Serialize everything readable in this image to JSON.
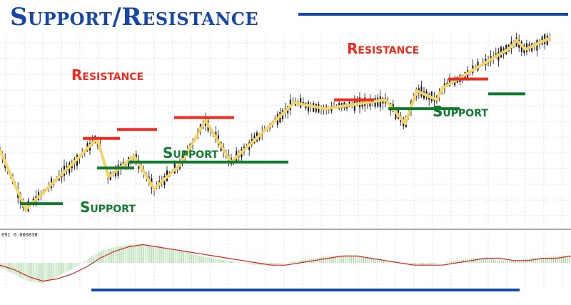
{
  "title": "Support/Resistance",
  "colors": {
    "title": "#1747a6",
    "support": "#117a2e",
    "resistance": "#f02a1e",
    "zigzag": "#f3d46c",
    "candles": "#111111",
    "grid": "#d9dde3",
    "macd_histogram": "#8fd18a",
    "macd_signal": "#d62020",
    "frame_line": "#1747a6"
  },
  "indicator": {
    "readout": "091 0.000838"
  },
  "chart_data": {
    "type": "line",
    "grid": true,
    "zigzag": {
      "x": [
        0,
        9,
        26,
        34,
        38,
        47,
        54,
        63,
        72,
        81,
        103,
        114,
        135,
        142,
        146,
        153,
        155,
        178,
        181,
        184,
        193
      ],
      "y": [
        84,
        64,
        80,
        88,
        75,
        82,
        71,
        79,
        94,
        80,
        100,
        98,
        101,
        93,
        104,
        101,
        105,
        118,
        121,
        118,
        122
      ]
    },
    "markers": [
      {
        "kind": "support",
        "label": "Support",
        "x": [
          7,
          22
        ],
        "y": 66
      },
      {
        "kind": "resistance",
        "label": "Resistance",
        "x": [
          29,
          42
        ],
        "y": 88
      },
      {
        "kind": "support",
        "label": "",
        "x": [
          34,
          47
        ],
        "y": 78
      },
      {
        "kind": "resistance",
        "label": "",
        "x": [
          41,
          55
        ],
        "y": 91
      },
      {
        "kind": "support",
        "label": "Support",
        "x": [
          45,
          101
        ],
        "y": 80
      },
      {
        "kind": "resistance",
        "label": "",
        "x": [
          61,
          82
        ],
        "y": 95
      },
      {
        "kind": "resistance",
        "label": "",
        "x": [
          117,
          131
        ],
        "y": 101
      },
      {
        "kind": "support",
        "label": "",
        "x": [
          136,
          161
        ],
        "y": 98
      },
      {
        "kind": "resistance",
        "label": "Resistance",
        "x": [
          157,
          171
        ],
        "y": 108
      },
      {
        "kind": "support",
        "label": "Support",
        "x": [
          171,
          184
        ],
        "y": 103
      }
    ],
    "label_positions": [
      {
        "text": "Support",
        "kind": "support"
      },
      {
        "text": "Resistance",
        "kind": "resistance"
      },
      {
        "text": "Support",
        "kind": "support"
      },
      {
        "text": "Resistance",
        "kind": "resistance"
      },
      {
        "text": "Support",
        "kind": "support"
      }
    ],
    "macd": {
      "x": [
        0,
        5,
        10,
        15,
        20,
        25,
        30,
        35,
        40,
        45,
        50,
        55,
        60,
        65,
        70,
        75,
        80,
        85,
        90,
        95,
        100,
        105,
        110,
        115,
        120,
        125,
        130,
        135,
        140,
        145,
        150,
        155,
        160,
        165,
        170,
        175,
        180,
        185,
        190,
        195,
        200
      ],
      "histogram": [
        -2,
        -5,
        -8,
        -9,
        -6,
        -3,
        1,
        5,
        7,
        8,
        8,
        7,
        6,
        5,
        3,
        2,
        1,
        0,
        -1,
        -1,
        0,
        1,
        2,
        3,
        3,
        3,
        2,
        1,
        0,
        -1,
        -1,
        0,
        1,
        2,
        2,
        1,
        1,
        2,
        2,
        3,
        3
      ],
      "signal": [
        -1,
        -3,
        -6,
        -8,
        -7,
        -5,
        -2,
        2,
        5,
        7,
        8,
        7,
        6,
        5,
        4,
        3,
        2,
        1,
        0,
        -1,
        -1,
        0,
        1,
        2,
        3,
        3,
        2,
        1,
        0,
        -1,
        -1,
        -1,
        0,
        1,
        2,
        2,
        1,
        1,
        2,
        2,
        3
      ]
    }
  }
}
